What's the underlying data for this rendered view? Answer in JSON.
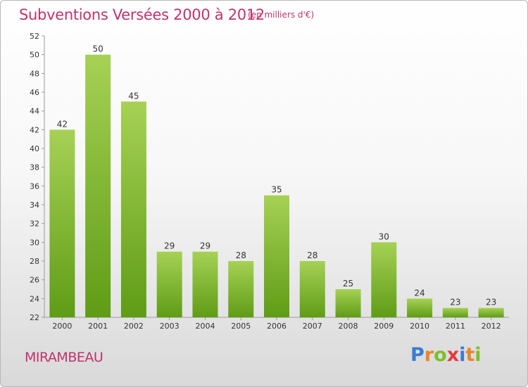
{
  "header": {
    "title": "Subventions Versées 2000 à 2012",
    "subtitle": "(en milliers d'€)"
  },
  "footer": {
    "commune": "MIRAMBEAU",
    "logo_text": "Proxiti",
    "logo_colors": [
      "#3a7bd5",
      "#e8862f",
      "#7cbf2c",
      "#e23c3c",
      "#3a7bd5",
      "#e8862f",
      "#7cbf2c"
    ]
  },
  "colors": {
    "title": "#c0336e",
    "bar_light": "#a6d155",
    "bar_dark": "#5f9c16",
    "axis": "#9a9a9a",
    "text": "#333333"
  },
  "chart_data": {
    "type": "bar",
    "title": "Subventions Versées 2000 à 2012",
    "subtitle": "(en milliers d'€)",
    "xlabel": "",
    "ylabel": "",
    "categories": [
      "2000",
      "2001",
      "2002",
      "2003",
      "2004",
      "2005",
      "2006",
      "2007",
      "2008",
      "2009",
      "2010",
      "2011",
      "2012"
    ],
    "values": [
      42,
      50,
      45,
      29,
      29,
      28,
      35,
      28,
      25,
      30,
      24,
      23,
      23
    ],
    "ylim": [
      22,
      52
    ],
    "yticks": [
      22,
      24,
      26,
      28,
      30,
      32,
      34,
      36,
      38,
      40,
      42,
      44,
      46,
      48,
      50,
      52
    ],
    "grid": false,
    "legend": "none"
  }
}
